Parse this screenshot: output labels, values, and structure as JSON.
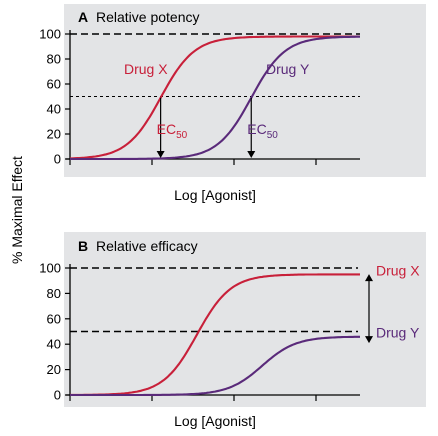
{
  "ylabel": "% Maximal Effect",
  "colors": {
    "drug_x": "#c8203a",
    "drug_y": "#5a2a7a",
    "panel_bg": "#e3e4e6"
  },
  "chart_data": [
    {
      "type": "line",
      "panel": "A",
      "title": "Relative potency",
      "xlabel": "Log [Agonist]",
      "yticks": [
        "100",
        "80",
        "60",
        "40",
        "20",
        "0"
      ],
      "ylim": [
        0,
        100
      ],
      "reference_lines": [
        {
          "y": 100,
          "style": "dashed"
        },
        {
          "y": 50,
          "style": "dotted"
        }
      ],
      "series": [
        {
          "name": "Drug X",
          "emax": 98,
          "log_ec50": 2.5,
          "hill": 1.5
        },
        {
          "name": "Drug Y",
          "emax": 98,
          "log_ec50": 5.0,
          "hill": 1.5
        }
      ],
      "annotations": [
        {
          "text": "EC",
          "sub": "50",
          "series": "Drug X"
        },
        {
          "text": "EC",
          "sub": "50",
          "series": "Drug Y"
        }
      ]
    },
    {
      "type": "line",
      "panel": "B",
      "title": "Relative efficacy",
      "xlabel": "Log [Agonist]",
      "yticks": [
        "100",
        "80",
        "60",
        "40",
        "20",
        "0"
      ],
      "ylim": [
        0,
        100
      ],
      "reference_lines": [
        {
          "y": 100,
          "style": "dashed"
        },
        {
          "y": 50,
          "style": "dashed"
        }
      ],
      "series": [
        {
          "name": "Drug X",
          "emax": 95,
          "log_ec50": 3.5,
          "hill": 1.5
        },
        {
          "name": "Drug Y",
          "emax": 46,
          "log_ec50": 5.3,
          "hill": 1.5
        }
      ],
      "annotations": [
        {
          "text": "↕",
          "between": [
            "Drug X",
            "Drug Y"
          ]
        }
      ]
    }
  ]
}
